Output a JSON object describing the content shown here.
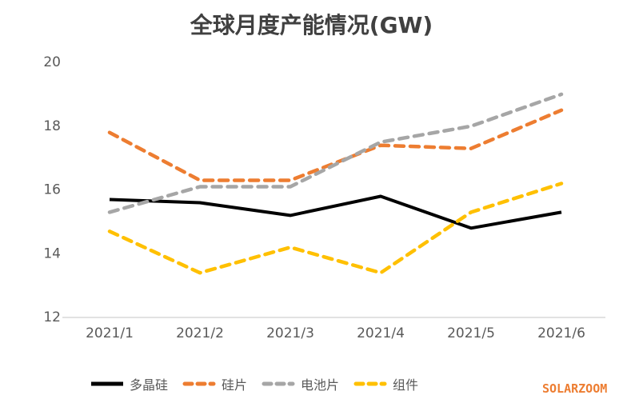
{
  "watermark": "SOLARZOOM",
  "colors": {
    "title": "#404040",
    "axis_line": "#D9D9D9",
    "tick_label": "#595959",
    "watermark": "#ED7D31"
  },
  "chart_data": {
    "type": "line",
    "title": "全球月度产能情况(GW)",
    "categories": [
      "2021/1",
      "2021/2",
      "2021/3",
      "2021/4",
      "2021/5",
      "2021/6"
    ],
    "series": [
      {
        "name": "多晶硅",
        "color": "#000000",
        "style": "solid",
        "values": [
          15.7,
          15.6,
          15.2,
          15.8,
          14.8,
          15.3
        ]
      },
      {
        "name": "硅片",
        "color": "#ED7D31",
        "style": "dashed",
        "values": [
          17.8,
          16.3,
          16.3,
          17.4,
          17.3,
          18.5
        ]
      },
      {
        "name": "电池片",
        "color": "#A6A6A6",
        "style": "dashed",
        "values": [
          15.3,
          16.1,
          16.1,
          17.5,
          18.0,
          19.0
        ]
      },
      {
        "name": "组件",
        "color": "#FFC000",
        "style": "dashed",
        "values": [
          14.7,
          13.4,
          14.2,
          13.4,
          15.3,
          16.2
        ]
      }
    ],
    "ylim": [
      12,
      20
    ],
    "yticks": [
      12,
      14,
      16,
      18,
      20
    ],
    "xlabel": "",
    "ylabel": "",
    "grid": false,
    "legend_position": "bottom"
  }
}
